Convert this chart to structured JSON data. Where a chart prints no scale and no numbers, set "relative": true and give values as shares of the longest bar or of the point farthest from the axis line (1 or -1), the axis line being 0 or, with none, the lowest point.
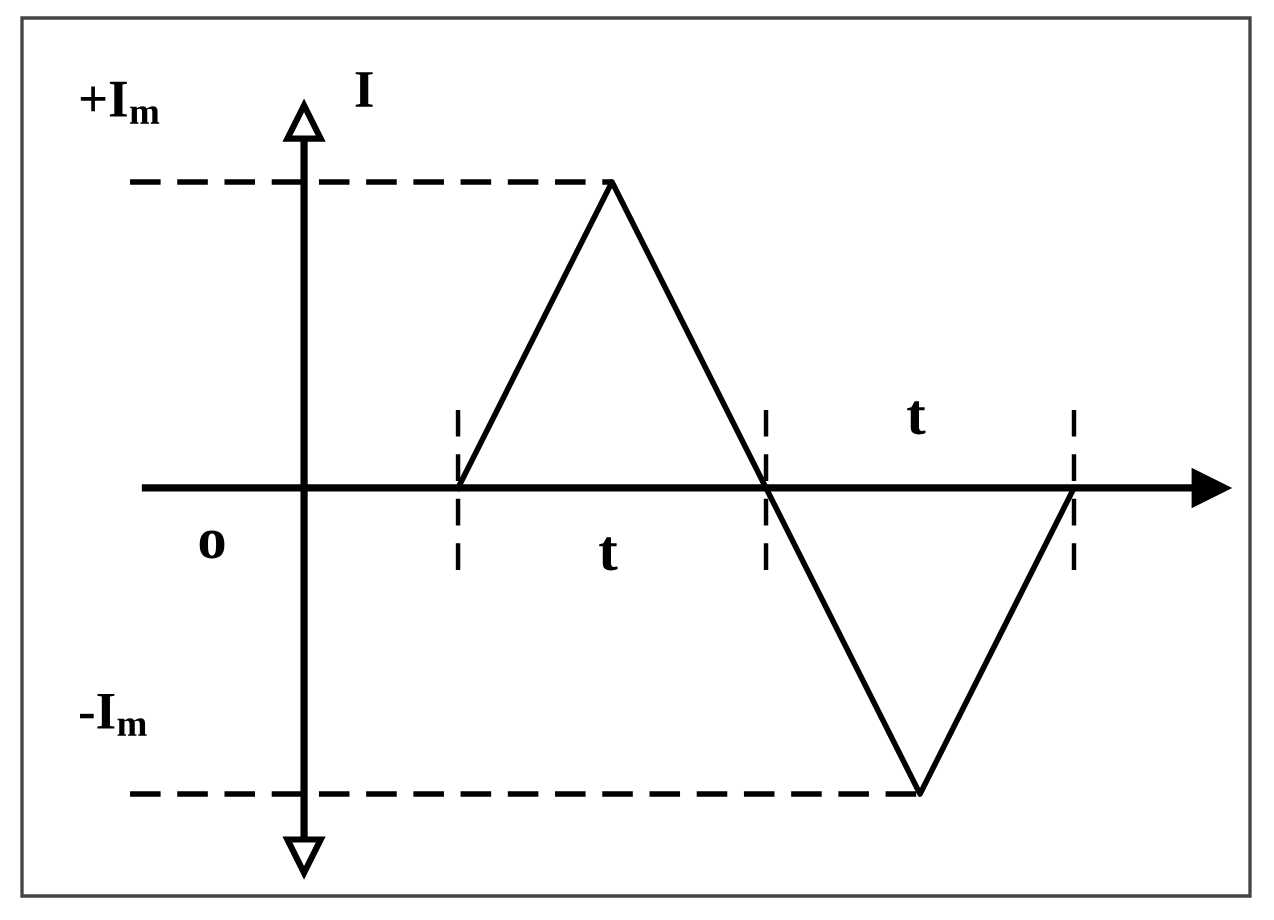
{
  "chart_data": {
    "type": "line",
    "relative": true,
    "categories": [
      null,
      null,
      null,
      null,
      null,
      null
    ],
    "series": [
      {
        "color": "#000000",
        "values": [
          null,
          0,
          1,
          0,
          -1,
          0
        ]
      }
    ],
    "line_style": "solid",
    "ylabel": "I",
    "annotations": [
      "o",
      "t",
      "t"
    ],
    "ref_lines": [
      {
        "axis": "y",
        "value": 1,
        "label": "+I$_{m}$",
        "color": "#000000",
        "line_style": "dashed"
      },
      {
        "axis": "y",
        "value": -1,
        "label": "-I$_{m}$",
        "color": "#000000",
        "line_style": "dashed"
      }
    ]
  }
}
